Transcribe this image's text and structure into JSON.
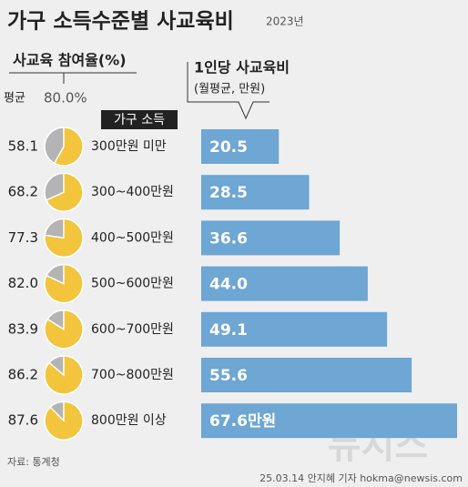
{
  "chart_data": {
    "type": "bar",
    "title": "가구 소득수준별 사교육비",
    "subtitle": "2023년",
    "category_header": "가구 소득",
    "categories": [
      "300만원 미만",
      "300~400만원",
      "400~500만원",
      "500~600만원",
      "600~700만원",
      "700~800만원",
      "800만원 이상"
    ],
    "series": [
      {
        "name": "사교육 참여율(%)",
        "type": "pie",
        "color": "#f2c53d",
        "rest_color": "#b4b4b4",
        "average_name": "평균",
        "average": 80.0,
        "average_label": "80.0%",
        "values": [
          58.1,
          68.2,
          77.3,
          82.0,
          83.9,
          86.2,
          87.6
        ],
        "value_labels": [
          "58.1",
          "68.2",
          "77.3",
          "82.0",
          "83.9",
          "86.2",
          "87.6"
        ]
      },
      {
        "name": "1인당 사교육비",
        "unit_note": "(월평균, 만원)",
        "type": "bar",
        "color": "#6ea6d4",
        "values": [
          20.5,
          28.5,
          36.6,
          44.0,
          49.1,
          55.6,
          67.6
        ],
        "value_labels": [
          "20.5",
          "28.5",
          "36.6",
          "44.0",
          "49.1",
          "55.6",
          "67.6만원"
        ]
      }
    ],
    "xlim": [
      0,
      70
    ],
    "source": "자료: 통계청",
    "credit": "25.03.14 안지혜 기자 hokma@newsis.com",
    "watermark": "뉴시스"
  }
}
